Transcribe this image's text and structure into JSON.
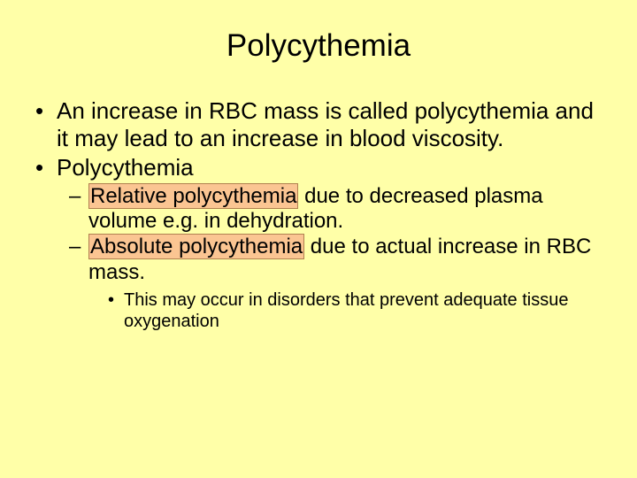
{
  "slide": {
    "background_color": "#ffffa8",
    "title": "Polycythemia",
    "title_fontsize": 35,
    "title_color": "#000000",
    "bullets_l1": [
      "An increase in RBC mass is called polycythemia and it may lead to an increase in blood viscosity.",
      "Polycythemia"
    ],
    "bullets_l2": [
      {
        "highlight": "Relative polycythemia",
        "rest": " due to decreased plasma volume e.g. in dehydration."
      },
      {
        "highlight": "Absolute polycythemia",
        "rest": " due to actual increase in RBC mass."
      }
    ],
    "bullets_l3": [
      "This may occur in disorders that prevent adequate tissue oxygenation"
    ],
    "highlight": {
      "background_color": "#fbc592",
      "border_color": "#b08050"
    },
    "body_fontsize_l1": 26,
    "body_fontsize_l2": 24,
    "body_fontsize_l3": 20,
    "text_color": "#000000"
  }
}
